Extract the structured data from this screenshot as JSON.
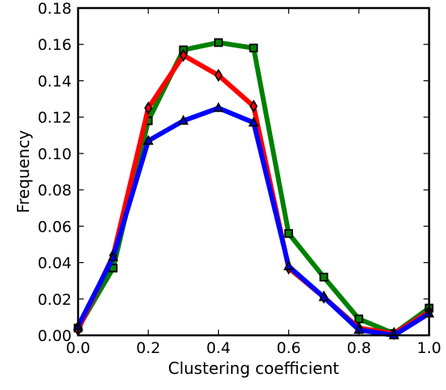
{
  "chart_data": {
    "type": "line",
    "title": "",
    "xlabel": "Clustering coefficient",
    "ylabel": "Frequency",
    "xlim": [
      0.0,
      1.0
    ],
    "ylim": [
      0.0,
      0.18
    ],
    "xticks": [
      0.0,
      0.2,
      0.4,
      0.6,
      0.8,
      1.0
    ],
    "xtick_labels": [
      "0.0",
      "0.2",
      "0.4",
      "0.6",
      "0.8",
      "1.0"
    ],
    "yticks": [
      0.0,
      0.02,
      0.04,
      0.06,
      0.08,
      0.1,
      0.12,
      0.14,
      0.16,
      0.18
    ],
    "ytick_labels": [
      "0.00",
      "0.02",
      "0.04",
      "0.06",
      "0.08",
      "0.10",
      "0.12",
      "0.14",
      "0.16",
      "0.18"
    ],
    "grid": false,
    "legend": "none",
    "x": [
      0.0,
      0.1,
      0.2,
      0.3,
      0.4,
      0.5,
      0.6,
      0.7,
      0.8,
      0.9,
      1.0
    ],
    "series": [
      {
        "color": "#008000",
        "marker": "square",
        "values": [
          0.004,
          0.037,
          0.118,
          0.157,
          0.161,
          0.158,
          0.056,
          0.032,
          0.009,
          0.001,
          0.015
        ]
      },
      {
        "color": "#ff0000",
        "marker": "diamond",
        "values": [
          0.003,
          0.044,
          0.125,
          0.154,
          0.143,
          0.126,
          0.037,
          0.021,
          0.004,
          0.001,
          0.013
        ]
      },
      {
        "color": "#0000ff",
        "marker": "triangle",
        "values": [
          0.005,
          0.043,
          0.107,
          0.118,
          0.125,
          0.117,
          0.038,
          0.021,
          0.003,
          0.0,
          0.012
        ]
      }
    ]
  }
}
